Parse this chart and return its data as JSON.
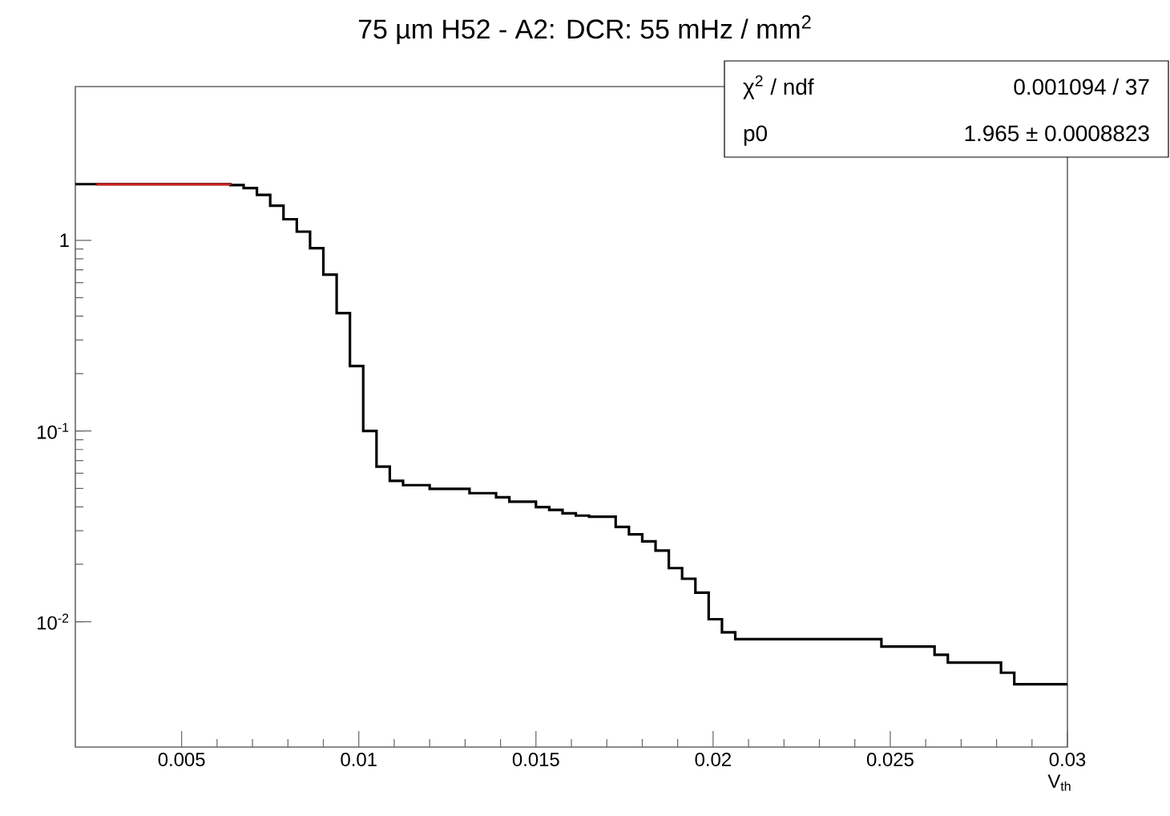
{
  "chart_data": {
    "type": "histogram",
    "title": "75 µm H52 - A2: DCR: 55 mHz / mm$^{2}$",
    "xlabel": "V$_{th}$",
    "bins": [
      0.002,
      0.00225,
      0.002625,
      0.003,
      0.003375,
      0.00375,
      0.004125,
      0.0045,
      0.004875,
      0.00525,
      0.005625,
      0.006,
      0.006375,
      0.00675,
      0.007125,
      0.0075,
      0.007875,
      0.00825,
      0.008625,
      0.009,
      0.009375,
      0.00975,
      0.010125,
      0.0105,
      0.010875,
      0.01125,
      0.011625,
      0.012,
      0.012375,
      0.01275,
      0.013125,
      0.0135,
      0.013875,
      0.01425,
      0.014625,
      0.015,
      0.015375,
      0.01575,
      0.016125,
      0.0165,
      0.016875,
      0.01725,
      0.017625,
      0.018,
      0.018375,
      0.01875,
      0.019125,
      0.0195,
      0.019875,
      0.02025,
      0.020625,
      0.021,
      0.021375,
      0.02175,
      0.022125,
      0.0225,
      0.022875,
      0.02325,
      0.023625,
      0.024,
      0.024375,
      0.02475,
      0.025125,
      0.0255,
      0.025875,
      0.02625,
      0.026625,
      0.027,
      0.027375,
      0.02775,
      0.028125,
      0.0285,
      0.028875,
      0.02925,
      0.029625,
      0.03
    ],
    "series": [
      {
        "color": "#000000",
        "values": [
          1.97,
          1.97,
          1.97,
          1.97,
          1.97,
          1.97,
          1.97,
          1.97,
          1.97,
          1.97,
          1.97,
          1.97,
          1.95,
          1.88,
          1.73,
          1.52,
          1.29,
          1.11,
          0.91,
          0.66,
          0.415,
          0.219,
          0.1,
          0.065,
          0.0548,
          0.052,
          0.052,
          0.0497,
          0.0497,
          0.0497,
          0.0472,
          0.0472,
          0.0449,
          0.0426,
          0.0426,
          0.0399,
          0.0386,
          0.037,
          0.036,
          0.0355,
          0.0355,
          0.0314,
          0.0287,
          0.0264,
          0.0236,
          0.0191,
          0.0168,
          0.0142,
          0.0103,
          0.0088,
          0.0081,
          0.0081,
          0.0081,
          0.0081,
          0.0081,
          0.0081,
          0.0081,
          0.0081,
          0.0081,
          0.0081,
          0.0081,
          0.0074,
          0.0074,
          0.0074,
          0.0074,
          0.0067,
          0.0061,
          0.0061,
          0.0061,
          0.0061,
          0.0054,
          0.0047,
          0.0047,
          0.0047,
          0.0047
        ]
      },
      {
        "type": "line",
        "color": "#cc1f1f",
        "x": [
          0.0026,
          0.0064
        ],
        "values": [
          1.965,
          1.965
        ]
      }
    ],
    "xlim": [
      0.002,
      0.03
    ],
    "ylim": [
      0.0022,
      6.4
    ],
    "xticks": [
      0.005,
      0.01,
      0.015,
      0.02,
      0.025,
      0.03
    ],
    "yticks": [
      {
        "value": 0.01,
        "label": "10$^{-2}$"
      },
      {
        "value": 0.1,
        "label": "10$^{-1}$"
      },
      {
        "value": 1,
        "label": "1"
      }
    ],
    "log": "y",
    "annotations": [
      "χ$^{2}$ / ndf",
      "0.001094 / 37",
      "p0",
      "1.965 ± 0.0008823"
    ]
  }
}
